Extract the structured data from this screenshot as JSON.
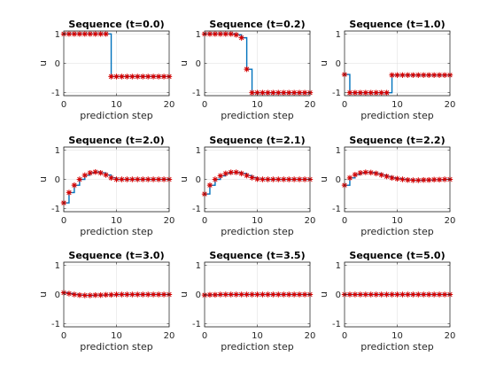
{
  "chart_data": [
    {
      "type": "line",
      "title": "Sequence (t=0.0)",
      "xlabel": "prediction step",
      "ylabel": "u",
      "xlim": [
        0,
        20
      ],
      "ylim": [
        -1.1,
        1.1
      ],
      "xticks": [
        0,
        10,
        20
      ],
      "yticks": [
        -1,
        0,
        1
      ],
      "grid": true,
      "x": [
        0,
        1,
        2,
        3,
        4,
        5,
        6,
        7,
        8,
        9,
        10,
        11,
        12,
        13,
        14,
        15,
        16,
        17,
        18,
        19,
        20
      ],
      "series": [
        {
          "values": [
            1,
            1,
            1,
            1,
            1,
            1,
            1,
            1,
            1,
            -0.45,
            -0.45,
            -0.45,
            -0.45,
            -0.45,
            -0.45,
            -0.45,
            -0.45,
            -0.45,
            -0.45,
            -0.45,
            -0.45
          ]
        }
      ]
    },
    {
      "type": "line",
      "title": "Sequence (t=0.2)",
      "xlabel": "prediction step",
      "ylabel": "u",
      "xlim": [
        0,
        20
      ],
      "ylim": [
        -1.1,
        1.1
      ],
      "xticks": [
        0,
        10,
        20
      ],
      "yticks": [
        -1,
        0,
        1
      ],
      "grid": true,
      "x": [
        0,
        1,
        2,
        3,
        4,
        5,
        6,
        7,
        8,
        9,
        10,
        11,
        12,
        13,
        14,
        15,
        16,
        17,
        18,
        19,
        20
      ],
      "series": [
        {
          "values": [
            1,
            1,
            1,
            1,
            1,
            1,
            0.97,
            0.87,
            -0.2,
            -1,
            -1,
            -1,
            -1,
            -1,
            -1,
            -1,
            -1,
            -1,
            -1,
            -1,
            -1
          ]
        }
      ]
    },
    {
      "type": "line",
      "title": "Sequence (t=1.0)",
      "xlabel": "prediction step",
      "ylabel": "u",
      "xlim": [
        0,
        20
      ],
      "ylim": [
        -1.1,
        1.1
      ],
      "xticks": [
        0,
        10,
        20
      ],
      "yticks": [
        -1,
        0,
        1
      ],
      "grid": true,
      "x": [
        0,
        1,
        2,
        3,
        4,
        5,
        6,
        7,
        8,
        9,
        10,
        11,
        12,
        13,
        14,
        15,
        16,
        17,
        18,
        19,
        20
      ],
      "series": [
        {
          "values": [
            -0.38,
            -1,
            -1,
            -1,
            -1,
            -1,
            -1,
            -1,
            -1,
            -0.4,
            -0.4,
            -0.4,
            -0.4,
            -0.4,
            -0.4,
            -0.4,
            -0.4,
            -0.4,
            -0.4,
            -0.4,
            -0.4
          ]
        }
      ]
    },
    {
      "type": "line",
      "title": "Sequence (t=2.0)",
      "xlabel": "prediction step",
      "ylabel": "u",
      "xlim": [
        0,
        20
      ],
      "ylim": [
        -1.1,
        1.1
      ],
      "xticks": [
        0,
        10,
        20
      ],
      "yticks": [
        -1,
        0,
        1
      ],
      "grid": true,
      "x": [
        0,
        1,
        2,
        3,
        4,
        5,
        6,
        7,
        8,
        9,
        10,
        11,
        12,
        13,
        14,
        15,
        16,
        17,
        18,
        19,
        20
      ],
      "series": [
        {
          "values": [
            -0.8,
            -0.45,
            -0.2,
            0,
            0.14,
            0.22,
            0.25,
            0.22,
            0.15,
            0.05,
            0,
            0,
            0,
            0,
            0,
            0,
            0,
            0,
            0,
            0,
            0
          ]
        }
      ]
    },
    {
      "type": "line",
      "title": "Sequence (t=2.1)",
      "xlabel": "prediction step",
      "ylabel": "u",
      "xlim": [
        0,
        20
      ],
      "ylim": [
        -1.1,
        1.1
      ],
      "xticks": [
        0,
        10,
        20
      ],
      "yticks": [
        -1,
        0,
        1
      ],
      "grid": true,
      "x": [
        0,
        1,
        2,
        3,
        4,
        5,
        6,
        7,
        8,
        9,
        10,
        11,
        12,
        13,
        14,
        15,
        16,
        17,
        18,
        19,
        20
      ],
      "series": [
        {
          "values": [
            -0.5,
            -0.2,
            0,
            0.12,
            0.2,
            0.24,
            0.24,
            0.2,
            0.13,
            0.06,
            0.01,
            0,
            0,
            0,
            0,
            0,
            0,
            0,
            0,
            0,
            0
          ]
        }
      ]
    },
    {
      "type": "line",
      "title": "Sequence (t=2.2)",
      "xlabel": "prediction step",
      "ylabel": "u",
      "xlim": [
        0,
        20
      ],
      "ylim": [
        -1.1,
        1.1
      ],
      "xticks": [
        0,
        10,
        20
      ],
      "yticks": [
        -1,
        0,
        1
      ],
      "grid": true,
      "x": [
        0,
        1,
        2,
        3,
        4,
        5,
        6,
        7,
        8,
        9,
        10,
        11,
        12,
        13,
        14,
        15,
        16,
        17,
        18,
        19,
        20
      ],
      "series": [
        {
          "values": [
            -0.2,
            0.05,
            0.16,
            0.22,
            0.24,
            0.23,
            0.2,
            0.15,
            0.1,
            0.05,
            0.02,
            0,
            -0.02,
            -0.03,
            -0.03,
            -0.02,
            -0.02,
            -0.01,
            -0.01,
            0,
            0
          ]
        }
      ]
    },
    {
      "type": "line",
      "title": "Sequence (t=3.0)",
      "xlabel": "prediction step",
      "ylabel": "u",
      "xlim": [
        0,
        20
      ],
      "ylim": [
        -1.1,
        1.1
      ],
      "xticks": [
        0,
        10,
        20
      ],
      "yticks": [
        -1,
        0,
        1
      ],
      "grid": true,
      "x": [
        0,
        1,
        2,
        3,
        4,
        5,
        6,
        7,
        8,
        9,
        10,
        11,
        12,
        13,
        14,
        15,
        16,
        17,
        18,
        19,
        20
      ],
      "series": [
        {
          "values": [
            0.06,
            0.03,
            0,
            -0.02,
            -0.03,
            -0.03,
            -0.02,
            -0.02,
            -0.01,
            -0.01,
            0,
            0,
            0,
            0,
            0,
            0,
            0,
            0,
            0,
            0,
            0
          ]
        }
      ]
    },
    {
      "type": "line",
      "title": "Sequence (t=3.5)",
      "xlabel": "prediction step",
      "ylabel": "u",
      "xlim": [
        0,
        20
      ],
      "ylim": [
        -1.1,
        1.1
      ],
      "xticks": [
        0,
        10,
        20
      ],
      "yticks": [
        -1,
        0,
        1
      ],
      "grid": true,
      "x": [
        0,
        1,
        2,
        3,
        4,
        5,
        6,
        7,
        8,
        9,
        10,
        11,
        12,
        13,
        14,
        15,
        16,
        17,
        18,
        19,
        20
      ],
      "series": [
        {
          "values": [
            -0.02,
            -0.01,
            -0.01,
            0,
            0,
            0,
            0,
            0,
            0,
            0,
            0,
            0,
            0,
            0,
            0,
            0,
            0,
            0,
            0,
            0,
            0
          ]
        }
      ]
    },
    {
      "type": "line",
      "title": "Sequence (t=5.0)",
      "xlabel": "prediction step",
      "ylabel": "u",
      "xlim": [
        0,
        20
      ],
      "ylim": [
        -1.1,
        1.1
      ],
      "xticks": [
        0,
        10,
        20
      ],
      "yticks": [
        -1,
        0,
        1
      ],
      "grid": true,
      "x": [
        0,
        1,
        2,
        3,
        4,
        5,
        6,
        7,
        8,
        9,
        10,
        11,
        12,
        13,
        14,
        15,
        16,
        17,
        18,
        19,
        20
      ],
      "series": [
        {
          "values": [
            0,
            0,
            0,
            0,
            0,
            0,
            0,
            0,
            0,
            0,
            0,
            0,
            0,
            0,
            0,
            0,
            0,
            0,
            0,
            0,
            0
          ]
        }
      ]
    }
  ],
  "colors": {
    "stairs_line": "#0072bd",
    "markers": "#d40000",
    "grid": "#dcdcdc",
    "axes": "#262626"
  }
}
